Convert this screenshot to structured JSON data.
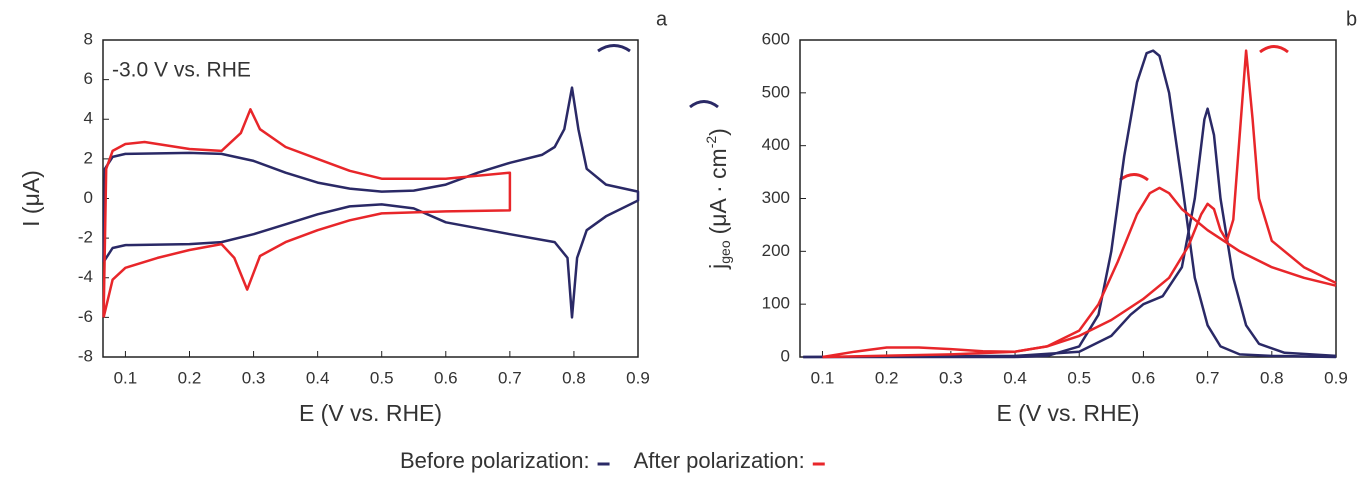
{
  "chart_data": [
    {
      "type": "line",
      "panel_label": "a",
      "annotation": "-3.0 V vs. RHE",
      "x_label": "E (V vs. RHE)",
      "y_label": "I (μA)",
      "xlim": [
        0.065,
        0.9
      ],
      "ylim": [
        -8,
        8
      ],
      "xticks": [
        0.1,
        0.2,
        0.3,
        0.4,
        0.5,
        0.6,
        0.7,
        0.8,
        0.9
      ],
      "yticks": [
        -8,
        -6,
        -4,
        -2,
        0,
        2,
        4,
        6,
        8
      ],
      "series": [
        {
          "color": "#2a2966",
          "x": [
            0.066,
            0.068,
            0.08,
            0.1,
            0.2,
            0.25,
            0.3,
            0.35,
            0.4,
            0.45,
            0.5,
            0.55,
            0.6,
            0.65,
            0.7,
            0.75,
            0.77,
            0.785,
            0.797,
            0.807,
            0.82,
            0.85,
            0.9,
            0.9,
            0.85,
            0.82,
            0.805,
            0.797,
            0.79,
            0.77,
            0.7,
            0.6,
            0.55,
            0.5,
            0.45,
            0.4,
            0.35,
            0.3,
            0.25,
            0.2,
            0.1,
            0.08,
            0.066
          ],
          "values": [
            -3.2,
            1.5,
            2.1,
            2.25,
            2.3,
            2.25,
            1.9,
            1.3,
            0.8,
            0.5,
            0.35,
            0.4,
            0.7,
            1.3,
            1.8,
            2.2,
            2.6,
            3.5,
            5.6,
            3.5,
            1.5,
            0.7,
            0.35,
            -0.1,
            -0.9,
            -1.6,
            -3,
            -6,
            -3,
            -2.2,
            -1.8,
            -1.2,
            -0.5,
            -0.3,
            -0.4,
            -0.8,
            -1.3,
            -1.8,
            -2.2,
            -2.3,
            -2.35,
            -2.5,
            -3.2
          ]
        },
        {
          "color": "#e8262a",
          "x": [
            0.066,
            0.07,
            0.08,
            0.1,
            0.13,
            0.2,
            0.25,
            0.28,
            0.295,
            0.31,
            0.35,
            0.4,
            0.45,
            0.5,
            0.6,
            0.7,
            0.7,
            0.6,
            0.5,
            0.45,
            0.4,
            0.35,
            0.31,
            0.29,
            0.27,
            0.25,
            0.2,
            0.15,
            0.1,
            0.08,
            0.066
          ],
          "values": [
            -6,
            1.5,
            2.4,
            2.75,
            2.85,
            2.5,
            2.4,
            3.3,
            4.5,
            3.5,
            2.6,
            2,
            1.4,
            1,
            1,
            1.3,
            -0.6,
            -0.65,
            -0.75,
            -1.1,
            -1.6,
            -2.2,
            -2.9,
            -4.6,
            -3,
            -2.3,
            -2.6,
            -3,
            -3.5,
            -4.1,
            -6
          ]
        }
      ]
    },
    {
      "type": "line",
      "panel_label": "b",
      "x_label": "E (V vs. RHE)",
      "y_label": {
        "main": "j",
        "sub": "geo",
        "unit": "(μA · cm",
        "sup": "-2",
        "close": ")"
      },
      "xlim": [
        0.065,
        0.9
      ],
      "ylim": [
        0,
        600
      ],
      "xticks": [
        0.1,
        0.2,
        0.3,
        0.4,
        0.5,
        0.6,
        0.7,
        0.8,
        0.9
      ],
      "yticks": [
        0,
        100,
        200,
        300,
        400,
        500,
        600
      ],
      "series": [
        {
          "color": "#2a2966",
          "x": [
            0.07,
            0.4,
            0.45,
            0.5,
            0.53,
            0.55,
            0.57,
            0.59,
            0.605,
            0.615,
            0.625,
            0.64,
            0.66,
            0.68,
            0.7,
            0.72,
            0.75,
            0.8,
            0.9
          ],
          "values": [
            0,
            0,
            2,
            20,
            80,
            200,
            380,
            520,
            575,
            580,
            570,
            500,
            330,
            150,
            60,
            20,
            5,
            2,
            0
          ]
        },
        {
          "color": "#2a2966",
          "x": [
            0.07,
            0.4,
            0.5,
            0.55,
            0.58,
            0.6,
            0.63,
            0.66,
            0.68,
            0.695,
            0.7,
            0.71,
            0.72,
            0.74,
            0.76,
            0.78,
            0.82,
            0.9
          ],
          "values": [
            0,
            2,
            10,
            40,
            80,
            100,
            115,
            170,
            300,
            450,
            470,
            420,
            300,
            150,
            60,
            25,
            8,
            2
          ]
        },
        {
          "color": "#e8262a",
          "x": [
            0.1,
            0.15,
            0.2,
            0.25,
            0.3,
            0.35,
            0.4,
            0.45,
            0.5,
            0.53,
            0.56,
            0.59,
            0.61,
            0.625,
            0.64,
            0.66,
            0.7,
            0.75,
            0.8,
            0.85,
            0.9
          ],
          "values": [
            0,
            10,
            18,
            18,
            15,
            11,
            10,
            20,
            50,
            100,
            180,
            270,
            310,
            320,
            310,
            280,
            240,
            200,
            170,
            150,
            135
          ]
        },
        {
          "color": "#e8262a",
          "x": [
            0.1,
            0.3,
            0.4,
            0.45,
            0.5,
            0.55,
            0.6,
            0.64,
            0.67,
            0.69,
            0.7,
            0.71,
            0.72,
            0.73,
            0.74,
            0.75,
            0.76,
            0.77,
            0.78,
            0.8,
            0.85,
            0.9
          ],
          "values": [
            0,
            5,
            10,
            20,
            40,
            70,
            110,
            150,
            210,
            270,
            290,
            280,
            240,
            220,
            260,
            420,
            580,
            450,
            300,
            220,
            170,
            140
          ]
        }
      ]
    }
  ],
  "legend": [
    {
      "name": "Before polarization:",
      "color": "#2a2966"
    },
    {
      "name": "After polarization:",
      "color": "#e8262a"
    }
  ]
}
